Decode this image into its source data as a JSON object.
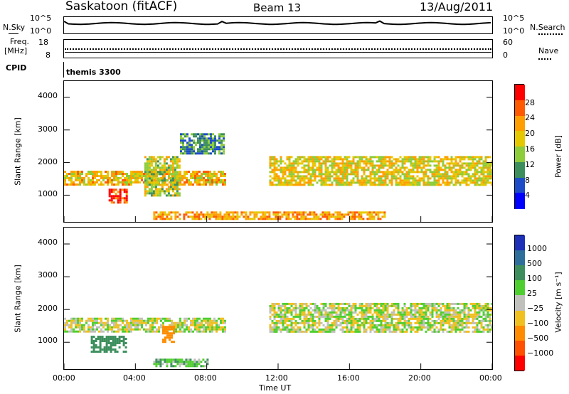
{
  "header": {
    "title": "Saskatoon (fitACF)",
    "beam": "Beam 13",
    "date": "13/Aug/2011"
  },
  "noise_panel": {
    "left_label": "N.Sky",
    "right_label": "N.Search",
    "left_ticks": [
      "10^5",
      "10^0"
    ],
    "right_ticks": [
      "10^5",
      "10^0"
    ]
  },
  "freq_panel": {
    "left_label_1": "Freq.",
    "left_label_2": "[MHz]",
    "right_label": "Nave",
    "left_ticks": [
      "18",
      "8"
    ],
    "right_ticks": [
      "60",
      "0"
    ]
  },
  "cpid_panel": {
    "label": "CPID",
    "value": "themis 3300"
  },
  "power_panel": {
    "ylabel": "Slant Range [km]",
    "yticks": [
      "4000",
      "3000",
      "2000",
      "1000"
    ],
    "colorbar_label": "Power [dB]",
    "colorbar_ticks": [
      "28",
      "24",
      "20",
      "16",
      "12",
      "8",
      "4"
    ],
    "colorbar_colors": [
      "#ff0000",
      "#ff5a00",
      "#ff9e00",
      "#e6c800",
      "#8dcc3a",
      "#3c8f5c",
      "#1c4cc8",
      "#0000ff"
    ]
  },
  "velocity_panel": {
    "ylabel": "Slant Range [km]",
    "yticks": [
      "4000",
      "3000",
      "2000",
      "1000"
    ],
    "colorbar_label": "Velocity [m s⁻¹]",
    "colorbar_ticks": [
      "1000",
      "500",
      "100",
      "25",
      "−25",
      "−100",
      "−500",
      "−1000"
    ],
    "colorbar_colors": [
      "#1e2fb8",
      "#2e6e9a",
      "#3c8f5c",
      "#4fcf2f",
      "#c0c0bc",
      "#f0c020",
      "#ff8c00",
      "#ff5000",
      "#ff0000"
    ]
  },
  "x_axis": {
    "label": "Time UT",
    "ticks": [
      "00:00",
      "04:00",
      "08:00",
      "12:00",
      "16:00",
      "20:00",
      "00:00"
    ]
  },
  "chart_data": [
    {
      "type": "heatmap",
      "title": "Power",
      "xlabel": "Time UT",
      "ylabel": "Slant Range [km]",
      "xlim": [
        "00:00",
        "24:00"
      ],
      "ylim": [
        180,
        4500
      ],
      "colorbar": {
        "label": "Power [dB]",
        "range": [
          0,
          30
        ]
      },
      "bands": [
        {
          "t": [
            0.0,
            9.0
          ],
          "range_km": [
            1350,
            1750
          ],
          "power_db": 20
        },
        {
          "t": [
            2.5,
            3.5
          ],
          "range_km": [
            750,
            1200
          ],
          "power_db": 28
        },
        {
          "t": [
            5.0,
            18.0
          ],
          "range_km": [
            250,
            500
          ],
          "power_db": 22
        },
        {
          "t": [
            11.5,
            24.0
          ],
          "range_km": [
            1300,
            2200
          ],
          "power_db": 18
        },
        {
          "t": [
            4.5,
            6.5
          ],
          "range_km": [
            1000,
            2200
          ],
          "power_db": 16
        },
        {
          "t": [
            6.5,
            9.0
          ],
          "range_km": [
            2300,
            2900
          ],
          "power_db": 10
        }
      ]
    },
    {
      "type": "heatmap",
      "title": "Velocity",
      "xlabel": "Time UT",
      "ylabel": "Slant Range [km]",
      "xlim": [
        "00:00",
        "24:00"
      ],
      "ylim": [
        180,
        4500
      ],
      "colorbar": {
        "label": "Velocity [m s⁻¹]",
        "range": [
          -1000,
          1000
        ]
      },
      "bands": [
        {
          "t": [
            0.0,
            9.0
          ],
          "range_km": [
            1350,
            1750
          ],
          "velocity": 0
        },
        {
          "t": [
            1.5,
            3.5
          ],
          "range_km": [
            700,
            1200
          ],
          "velocity": 300
        },
        {
          "t": [
            5.0,
            8.0
          ],
          "range_km": [
            300,
            500
          ],
          "velocity": 80
        },
        {
          "t": [
            11.5,
            24.0
          ],
          "range_km": [
            1300,
            2200
          ],
          "velocity": 0
        },
        {
          "t": [
            5.5,
            6.2
          ],
          "range_km": [
            1000,
            1500
          ],
          "velocity": -300
        }
      ]
    }
  ]
}
